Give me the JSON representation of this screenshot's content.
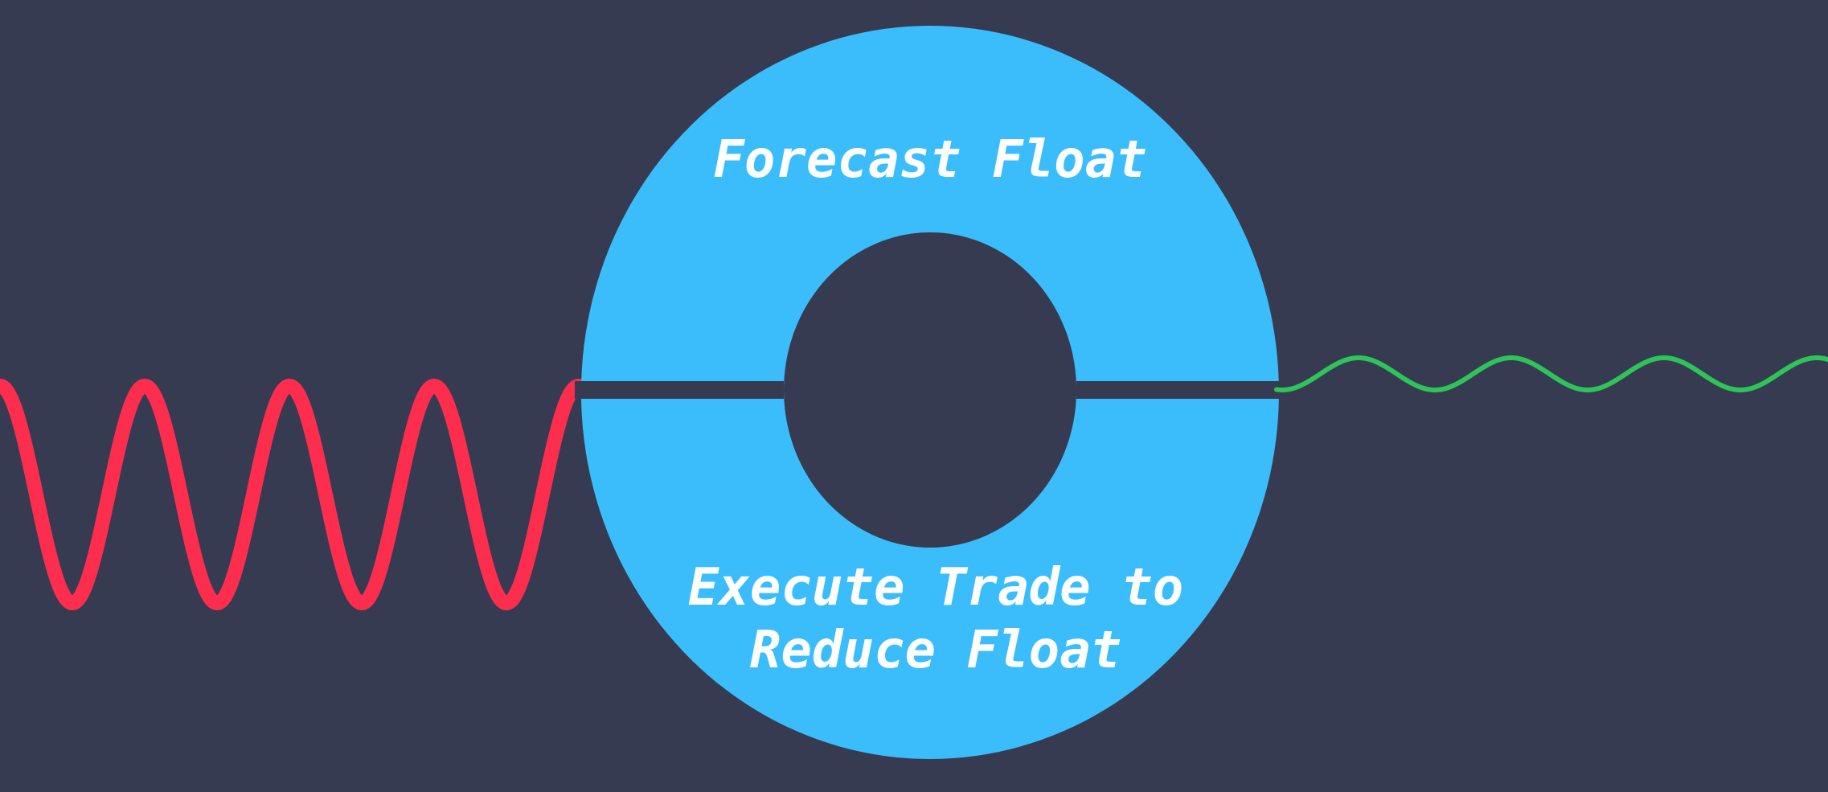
{
  "diagram": {
    "top_label": "Forecast Float",
    "bottom_label_line1": "Execute Trade to",
    "bottom_label_line2": "Reduce Float"
  },
  "colors": {
    "background": "#363b52",
    "ring": "#3bbdfc",
    "input_wave": "#fd2d4e",
    "output_wave": "#2fc45a",
    "label": "#ffffff"
  }
}
